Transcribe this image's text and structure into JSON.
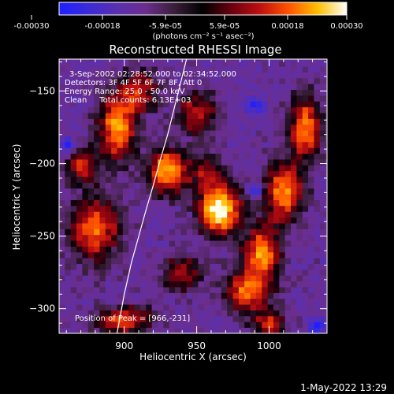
{
  "chart_data": {
    "type": "heatmap",
    "title": "Reconstructed RHESSI Image",
    "xlabel": "Heliocentric X (arcsec)",
    "ylabel": "Heliocentric Y (arcsec)",
    "xlim": [
      855,
      1040
    ],
    "ylim": [
      -317,
      -128
    ],
    "xticks": [
      900,
      950,
      1000
    ],
    "yticks": [
      -150,
      -200,
      -250,
      -300
    ],
    "grid": false,
    "colorbar": {
      "location": "top",
      "range": [
        -0.0003,
        0.0003
      ],
      "colors": [
        "#1f1fff",
        "#3a2bd8",
        "#5a2fb0",
        "#6b2e8f",
        "#3a1f3a",
        "#000000",
        "#6a0010",
        "#c01010",
        "#ff5500",
        "#ffbf00",
        "#ffffff"
      ],
      "tick_labels": [
        "-0.00030",
        "-0.00018",
        "-5.9e-05",
        "5.9e-05",
        "0.00018",
        "0.00030"
      ],
      "unit_label": "(photons cm⁻² s⁻¹ asec⁻²)"
    },
    "annotations": [
      "3-Sep-2002 02:28:52.000 to 02:34:52.000",
      "Detectors: 3F 4F 5F 6F 7F 8F, Att 0",
      "Energy Range: 25.0 - 50.0 keV",
      "Clean     Total counts: 6.13E+03"
    ],
    "peak_label": "Position of Peak = [966,-231]",
    "peak": [
      966,
      -231
    ],
    "limb_curve": {
      "x": [
        895,
        900,
        905,
        910,
        915,
        920,
        925,
        930,
        935,
        940,
        943
      ],
      "y": [
        -317,
        -290,
        -268,
        -250,
        -232,
        -215,
        -197,
        -180,
        -160,
        -140,
        -128
      ]
    },
    "hotspots": [
      {
        "x": 966,
        "y": -231,
        "intensity": 1.0,
        "sx": 10,
        "sy": 12
      },
      {
        "x": 930,
        "y": -205,
        "intensity": 0.8,
        "sx": 9,
        "sy": 11
      },
      {
        "x": 895,
        "y": -175,
        "intensity": 0.75,
        "sx": 9,
        "sy": 16
      },
      {
        "x": 880,
        "y": -245,
        "intensity": 0.65,
        "sx": 12,
        "sy": 16
      },
      {
        "x": 910,
        "y": -150,
        "intensity": 0.55,
        "sx": 9,
        "sy": 10
      },
      {
        "x": 950,
        "y": -165,
        "intensity": 0.5,
        "sx": 10,
        "sy": 10
      },
      {
        "x": 1025,
        "y": -175,
        "intensity": 0.7,
        "sx": 8,
        "sy": 16
      },
      {
        "x": 1010,
        "y": -220,
        "intensity": 0.75,
        "sx": 9,
        "sy": 14
      },
      {
        "x": 995,
        "y": -262,
        "intensity": 0.7,
        "sx": 9,
        "sy": 14
      },
      {
        "x": 985,
        "y": -288,
        "intensity": 0.65,
        "sx": 10,
        "sy": 10
      },
      {
        "x": 900,
        "y": -308,
        "intensity": 0.6,
        "sx": 14,
        "sy": 7
      },
      {
        "x": 1000,
        "y": -310,
        "intensity": 0.5,
        "sx": 8,
        "sy": 7
      },
      {
        "x": 940,
        "y": -275,
        "intensity": 0.45,
        "sx": 10,
        "sy": 9
      },
      {
        "x": 870,
        "y": -200,
        "intensity": 0.5,
        "sx": 8,
        "sy": 9
      },
      {
        "x": 955,
        "y": -205,
        "intensity": 0.35,
        "sx": 9,
        "sy": 9
      }
    ],
    "coldspots": [
      {
        "x": 862,
        "y": -188
      },
      {
        "x": 990,
        "y": -218
      },
      {
        "x": 1033,
        "y": -312
      },
      {
        "x": 990,
        "y": -160
      }
    ]
  },
  "footer": {
    "timestamp": "1-May-2022 13:29"
  }
}
